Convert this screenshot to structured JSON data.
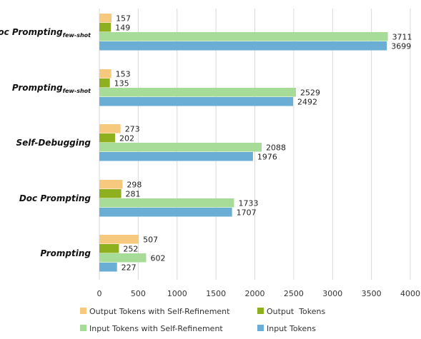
{
  "chart_data": {
    "type": "bar",
    "orientation": "horizontal",
    "categories": [
      {
        "main": "Doc Prompting",
        "sub": "few-shot"
      },
      {
        "main": "Prompting",
        "sub": "few-shot"
      },
      {
        "main": "Self-Debugging",
        "sub": ""
      },
      {
        "main": "Doc Prompting",
        "sub": ""
      },
      {
        "main": "Prompting",
        "sub": ""
      }
    ],
    "series": [
      {
        "name": "Output Tokens with Self-Refinement",
        "color": "#f7c97e",
        "values": [
          157,
          153,
          273,
          298,
          507
        ]
      },
      {
        "name": "Output  Tokens",
        "color": "#8fb01e",
        "values": [
          149,
          135,
          202,
          281,
          252
        ]
      },
      {
        "name": "Input Tokens with Self-Refinement",
        "color": "#a6dc98",
        "values": [
          3711,
          2529,
          2088,
          1733,
          602
        ]
      },
      {
        "name": "Input Tokens",
        "color": "#6aaed6",
        "values": [
          3699,
          2492,
          1976,
          1707,
          227
        ]
      }
    ],
    "xlim": [
      0,
      4000
    ],
    "xticks": [
      "0",
      "500",
      "1000",
      "1500",
      "2000",
      "2500",
      "3000",
      "3500",
      "4000"
    ],
    "grid": true,
    "legend_position": "bottom"
  }
}
